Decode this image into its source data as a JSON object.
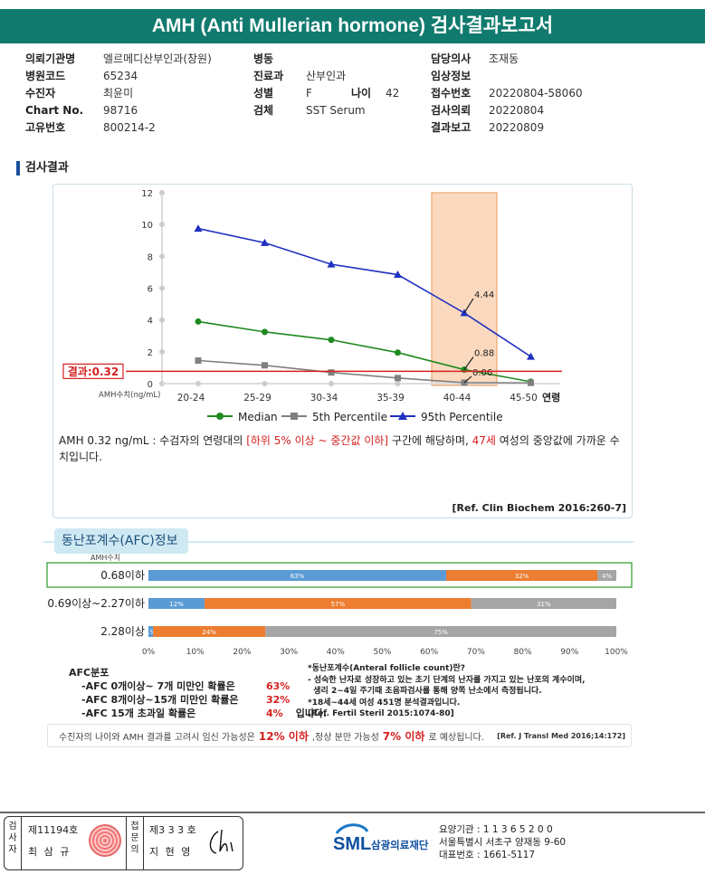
{
  "title": "AMH (Anti Mullerian hormone) 검사결과보고서",
  "info": {
    "col1": [
      {
        "label": "의뢰기관명",
        "value": "엘르메디산부인과(창원)"
      },
      {
        "label": "병원코드",
        "value": "65234"
      },
      {
        "label": "수진자",
        "value": "최윤미"
      },
      {
        "label": "Chart No.",
        "value": "98716"
      },
      {
        "label": "고유번호",
        "value": "800214-2"
      }
    ],
    "col2": [
      {
        "label": "병동",
        "value": ""
      },
      {
        "label": "진료과",
        "value": "산부인과"
      },
      {
        "label": "성별",
        "value": "F"
      },
      {
        "label": "검체",
        "value": "SST Serum"
      }
    ],
    "age_label": "나이",
    "age_value": "42",
    "col3": [
      {
        "label": "담당의사",
        "value": "조재동"
      },
      {
        "label": "임상정보",
        "value": ""
      },
      {
        "label": "접수번호",
        "value": "20220804-58060"
      },
      {
        "label": "검사의뢰",
        "value": "20220804"
      },
      {
        "label": "결과보고",
        "value": "20220809"
      }
    ]
  },
  "section_title": "검사결과",
  "chart_data": {
    "type": "line",
    "categories": [
      "20-24",
      "25-29",
      "30-34",
      "35-39",
      "40-44",
      "45-50"
    ],
    "x_axis_end_label": "연령",
    "y_unit_label": "AMH수치(ng/mL)",
    "ylim": [
      0,
      12
    ],
    "yticks": [
      0,
      2,
      4,
      6,
      8,
      10,
      12
    ],
    "series": [
      {
        "name": "Median",
        "color": "#1f8a1f",
        "values": [
          3.9,
          3.25,
          2.75,
          1.95,
          0.88,
          0.12
        ]
      },
      {
        "name": "5th Percentile",
        "color": "#808080",
        "values": [
          1.45,
          1.15,
          0.7,
          0.35,
          0.06,
          0.05
        ]
      },
      {
        "name": "95th Percentile",
        "color": "#2030c0",
        "values": [
          9.75,
          8.85,
          7.5,
          6.85,
          4.44,
          1.7
        ]
      }
    ],
    "annotations": [
      "4.44",
      "0.88",
      "0.06"
    ],
    "highlight_category": "40-44",
    "result_label": "결과:0.32",
    "result_value": 0.32
  },
  "interpretation": {
    "part1": "AMH  0.32 ng/mL : 수검자의 연령대의 ",
    "part2_red": "[하위 5% 이상 ~ 중간값 이하]",
    "part3": " 구간에 해당하며, ",
    "part4_red": "47세",
    "part5": " 여성의 중앙값에 가까운 수치입니다."
  },
  "reference1": "[Ref. Clin Biochem 2016:260-7]",
  "afc": {
    "heading": "동난포계수(AFC)정보",
    "amh_col_label": "AMH수치",
    "colors": [
      "#5b9bd5",
      "#ed7d31",
      "#a5a5a5"
    ],
    "rows": [
      {
        "label": "0.68이하",
        "segments": [
          63,
          32,
          4
        ],
        "labels": [
          "63%",
          "32%",
          "4%"
        ]
      },
      {
        "label": "0.69이상~2.27이하",
        "segments": [
          12,
          57,
          31
        ],
        "labels": [
          "12%",
          "57%",
          "31%"
        ]
      },
      {
        "label": "2.28이상",
        "segments": [
          1,
          24,
          75
        ],
        "labels": [
          "1%",
          "24%",
          "75%"
        ]
      }
    ],
    "axis_ticks": [
      "0%",
      "10%",
      "20%",
      "30%",
      "40%",
      "50%",
      "60%",
      "70%",
      "80%",
      "90%",
      "100%"
    ],
    "dist_title": "AFC분포",
    "dist": [
      {
        "text": "-AFC  0개이상~ 7개 미만인 확률은",
        "value": "63%"
      },
      {
        "text": "-AFC  8개이상~15개 미만인 확률은",
        "value": "32%"
      },
      {
        "text": "-AFC  15개 초과일 확률은",
        "value": "4%",
        "suffix": "입니다."
      }
    ],
    "notes": [
      "*동난포계수(Anteral follicle count)란?",
      "- 성숙한 난자로 성장하고 있는 초기 단계의 난자를 가지고 있는 난포의 계수이며,",
      "  생리 2~4일 주기때 초음파검사를 통해 양쪽 난소에서 측정됩니다.",
      "*18세~44세 여성 451명 분석결과입니다.",
      "[Ref. Fertil Steril 2015:1074-80]"
    ],
    "pregnancy": {
      "p1": "수진자의  나이와 AMH 결과를 고려시 임신 가능성은",
      "v1": "12% 이하",
      "p2": ",정상 분만 가능성",
      "v2": "7% 이하",
      "p3": "로 예상됩니다.",
      "ref": "[Ref. J Transl Med 2016;14:172]"
    }
  },
  "footer": {
    "inspector_label": "검사자",
    "inspector_no": "제11194호",
    "inspector_name": "최 삼 규",
    "approver_label": "접문의",
    "approver_no": "제3 3 3 호",
    "approver_name": "지 현 영",
    "logo_text": "SML",
    "org_name": "삼광의료재단",
    "agency_no": "요양기관 : 1 1 3 6 5 2 0 0",
    "address": "서울특별시 서초구 양재동 9-60",
    "phone": "대표번호 : 1661-5117"
  }
}
